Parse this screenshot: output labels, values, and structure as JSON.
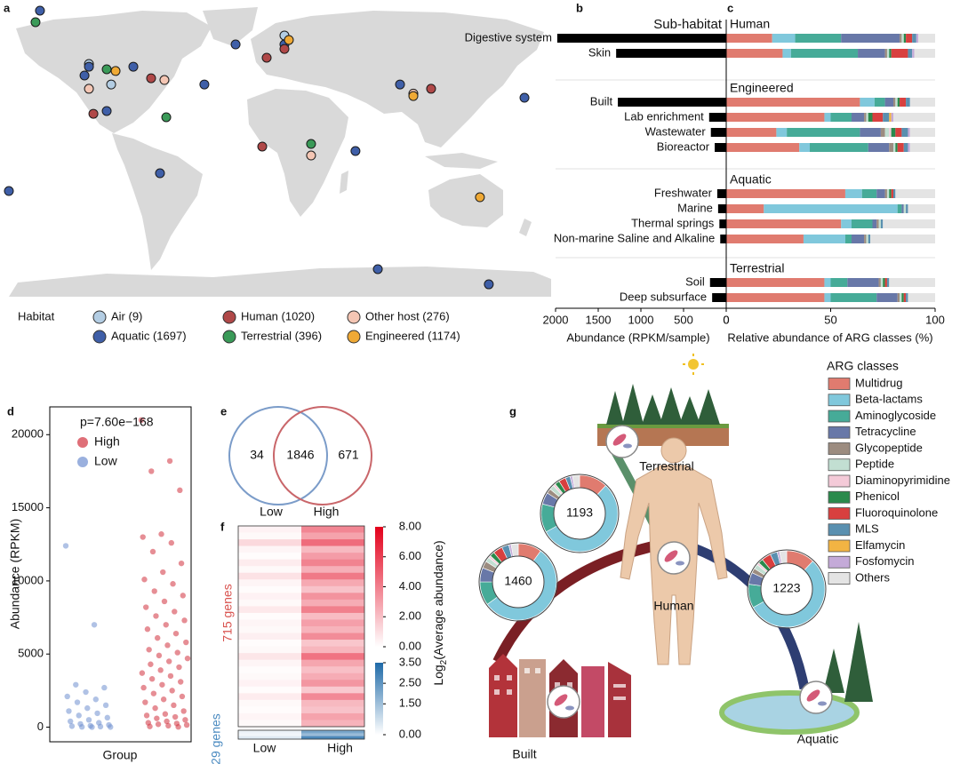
{
  "chart_data": [
    {
      "type": "map",
      "label": "a",
      "legend_title": "Habitat",
      "series": [
        {
          "name": "Air (9)",
          "color": "#b3cde3",
          "lon": [
            -121.9,
            -107.4,
            5.8
          ],
          "lat": [
            45.5,
            33.6,
            62.0
          ]
        },
        {
          "name": "Aquatic (1697)",
          "color": "#3f5fa8",
          "lon": [
            -153.9,
            -121.9,
            -124.8,
            -92.9,
            66.8,
            -26.1,
            5.8,
            139.3,
            -46.5,
            -174.2,
            -110.3,
            52.2,
            -75.5,
            162.6,
            81.3
          ],
          "lat": [
            76.4,
            43.9,
            38.8,
            43.9,
            -73.5,
            56.8,
            56.8,
            -82.3,
            33.6,
            -28.2,
            18.2,
            -5.0,
            -17.9,
            25.9,
            33.6
          ]
        },
        {
          "name": "Human (1020)",
          "color": "#b04848",
          "lon": [
            -81.3,
            -5.8,
            101.6,
            -8.7,
            -119.0,
            5.8
          ],
          "lat": [
            37.2,
            49.1,
            31.1,
            -2.4,
            16.6,
            54.2
          ]
        },
        {
          "name": "Terrestrial (396)",
          "color": "#3a9a58",
          "lon": [
            -156.8,
            -71.4,
            -110.3,
            23.2
          ],
          "lat": [
            69.7,
            14.6,
            42.4,
            -0.9
          ]
        },
        {
          "name": "Other host (276)",
          "color": "#f4c6b4",
          "lon": [
            90.0,
            23.2,
            -121.9,
            -72.6
          ],
          "lat": [
            28.3,
            -7.6,
            31.1,
            36.2
          ]
        },
        {
          "name": "Engineered (1174)",
          "color": "#efa935",
          "lon": [
            90.0,
            8.7,
            133.5,
            -104.5
          ],
          "lat": [
            26.9,
            59.4,
            -31.8,
            41.4
          ]
        }
      ]
    },
    {
      "type": "bar",
      "orientation": "horizontal",
      "label": "b",
      "title": "Sub-habitat",
      "color": "#000000",
      "xlabel": "Abundance (RPKM/sample)",
      "xlim": [
        2000,
        0
      ],
      "xticks": [
        2000,
        1500,
        1000,
        500,
        0
      ],
      "groups": [
        {
          "categories": [
            "Digestive system",
            "Skin"
          ],
          "values": [
            1980,
            1290
          ]
        },
        {
          "categories": [
            "Built",
            "Lab enrichment",
            "Wastewater",
            "Bioreactor"
          ],
          "values": [
            1270,
            200,
            180,
            135
          ]
        },
        {
          "categories": [
            "Freshwater",
            "Marine",
            "Thermal springs",
            "Non-marine Saline and Alkaline"
          ],
          "values": [
            105,
            95,
            80,
            70
          ]
        },
        {
          "categories": [
            "Soil",
            "Deep subsurface"
          ],
          "values": [
            190,
            165
          ]
        }
      ]
    },
    {
      "type": "stacked_bar",
      "label": "c",
      "xlabel": "Relative abundance of ARG classes (%)",
      "xlim": [
        0,
        100
      ],
      "xticks": [
        0,
        50,
        100
      ],
      "legend_title": "ARG classes",
      "series": [
        {
          "name": "Multidrug",
          "color": "#e07b6f"
        },
        {
          "name": "Beta-lactams",
          "color": "#80c8dc"
        },
        {
          "name": "Aminoglycoside",
          "color": "#46ab98"
        },
        {
          "name": "Tetracycline",
          "color": "#6878a8"
        },
        {
          "name": "Glycopeptide",
          "color": "#9c8c80"
        },
        {
          "name": "Peptide",
          "color": "#c2dfd2"
        },
        {
          "name": "Diaminopyrimidine",
          "color": "#f4cad8"
        },
        {
          "name": "Phenicol",
          "color": "#2a8a4c"
        },
        {
          "name": "Fluoroquinolone",
          "color": "#d8403f"
        },
        {
          "name": "MLS",
          "color": "#5a90b0"
        },
        {
          "name": "Elfamycin",
          "color": "#f2b443"
        },
        {
          "name": "Fosfomycin",
          "color": "#c4aad8"
        },
        {
          "name": "Others",
          "color": "#e4e4e4"
        }
      ],
      "groups": [
        {
          "name": "Human",
          "rows": [
            [
              22,
              11,
              22,
              28,
              1,
              1,
              0,
              1,
              3,
              2,
              0,
              1,
              8
            ],
            [
              27,
              4,
              32,
              13,
              1,
              1,
              0,
              1,
              8,
              2,
              0,
              1,
              10
            ]
          ]
        },
        {
          "name": "Engineered",
          "rows": [
            [
              64,
              7,
              5,
              4,
              1,
              1,
              0,
              1,
              3,
              2,
              0,
              0,
              12
            ],
            [
              47,
              3,
              10,
              6,
              1,
              1,
              0,
              2,
              5,
              3,
              1,
              1,
              20
            ],
            [
              24,
              5,
              35,
              10,
              2,
              2,
              1,
              2,
              3,
              3,
              0,
              1,
              12
            ],
            [
              35,
              5,
              28,
              10,
              2,
              1,
              0,
              1,
              3,
              2,
              0,
              1,
              12
            ]
          ]
        },
        {
          "name": "Aquatic",
          "rows": [
            [
              57,
              8,
              7,
              4,
              1,
              1,
              0,
              1,
              1,
              1,
              0,
              0,
              19
            ],
            [
              18,
              64,
              2,
              1,
              0,
              1,
              0,
              0,
              0,
              1,
              0,
              0,
              13
            ],
            [
              55,
              5,
              10,
              2,
              1,
              1,
              0,
              0,
              0,
              1,
              0,
              0,
              25
            ],
            [
              37,
              20,
              3,
              6,
              1,
              1,
              0,
              0,
              0,
              1,
              0,
              0,
              31
            ]
          ]
        },
        {
          "name": "Terrestrial",
          "rows": [
            [
              47,
              3,
              8,
              15,
              1,
              1,
              0,
              1,
              1,
              1,
              0,
              0,
              22
            ],
            [
              47,
              3,
              22,
              10,
              1,
              1,
              0,
              1,
              1,
              1,
              0,
              0,
              13
            ]
          ]
        }
      ]
    },
    {
      "type": "strip",
      "label": "d",
      "annotation": "p=7.60e−168",
      "ylabel": "Abundance (RPKM)",
      "xlabel": "Group",
      "ylim": [
        -1000,
        21900
      ],
      "yticks": [
        0,
        5000,
        10000,
        15000,
        20000
      ],
      "series": [
        {
          "name": "High",
          "color": "#d2323e",
          "values": [
            21000,
            18200,
            17500,
            16200,
            13200,
            13000,
            12600,
            12000,
            11200,
            10600,
            10100,
            9800,
            9300,
            9000,
            8600,
            8200,
            7900,
            7600,
            7300,
            7000,
            6700,
            6400,
            6100,
            5800,
            5600,
            5300,
            5100,
            4900,
            4700,
            4500,
            4300,
            4100,
            3900,
            3700,
            3500,
            3300,
            3100,
            2900,
            2700,
            2500,
            2300,
            2100,
            1900,
            1700,
            1500,
            1300,
            1100,
            900,
            800,
            700,
            600,
            500,
            400,
            300,
            250,
            200,
            150,
            100,
            50,
            20
          ]
        },
        {
          "name": "Low",
          "color": "#6f8fd0",
          "values": [
            12400,
            7000,
            2900,
            2700,
            2400,
            2100,
            1900,
            1700,
            1500,
            1300,
            1100,
            950,
            800,
            650,
            500,
            400,
            300,
            220,
            150,
            100,
            70,
            40,
            20,
            10,
            5
          ]
        }
      ]
    },
    {
      "type": "venn",
      "label": "e",
      "sets": [
        {
          "name": "Low",
          "color": "#7b9cc9"
        },
        {
          "name": "High",
          "color": "#c9666a"
        }
      ],
      "values": [
        34,
        1846,
        671
      ]
    },
    {
      "type": "heatmap",
      "label": "f",
      "columns": [
        "Low",
        "High"
      ],
      "groups": [
        {
          "name": "715 genes",
          "color": "#d9534f",
          "rows": [
            [
              0.4,
              3.8
            ],
            [
              0.2,
              2.9
            ],
            [
              1.2,
              4.6
            ],
            [
              0.3,
              2.2
            ],
            [
              0.1,
              3.1
            ],
            [
              0.6,
              3.9
            ],
            [
              0.2,
              2.5
            ],
            [
              0.9,
              4.2
            ],
            [
              0.3,
              2.7
            ],
            [
              0.1,
              1.9
            ],
            [
              0.4,
              3.4
            ],
            [
              0.2,
              2.6
            ],
            [
              0.7,
              4.0
            ],
            [
              0.1,
              2.1
            ],
            [
              0.3,
              3.0
            ],
            [
              0.2,
              2.4
            ],
            [
              0.5,
              3.6
            ],
            [
              0.1,
              1.8
            ],
            [
              0.2,
              2.3
            ],
            [
              0.8,
              4.4
            ],
            [
              0.3,
              2.8
            ],
            [
              0.1,
              2.0
            ],
            [
              0.2,
              2.6
            ],
            [
              0.4,
              3.3
            ],
            [
              0.1,
              1.7
            ],
            [
              0.6,
              3.7
            ],
            [
              0.2,
              2.2
            ],
            [
              0.1,
              1.9
            ],
            [
              0.3,
              2.9
            ],
            [
              0.2,
              2.4
            ]
          ]
        },
        {
          "name": "29 genes",
          "color": "#4a8ac0",
          "rows": [
            [
              0.3,
              2.1
            ],
            [
              0.2,
              1.6
            ],
            [
              0.5,
              2.8
            ]
          ]
        }
      ],
      "colorbars": [
        {
          "colors": [
            "#ffffff",
            "#e3001b"
          ],
          "lim": [
            0,
            8
          ],
          "ticks": [
            {
              "value": 8,
              "label": "8.00"
            },
            {
              "value": 6,
              "label": "6.00"
            },
            {
              "value": 4,
              "label": "4.00"
            },
            {
              "value": 2,
              "label": "2.00"
            },
            {
              "value": 0,
              "label": "0.00"
            }
          ]
        },
        {
          "colors": [
            "#ffffff",
            "#1f6aa8"
          ],
          "lim": [
            0,
            3.5
          ],
          "ticks": [
            {
              "value": 3.5,
              "label": "3.50"
            },
            {
              "value": 2.5,
              "label": "2.50"
            },
            {
              "value": 1.5,
              "label": "1.50"
            },
            {
              "value": 0,
              "label": "0.00"
            }
          ]
        }
      ],
      "colorbar_label": [
        "Log",
        "2",
        "(Average abundance)"
      ]
    },
    {
      "type": "donut",
      "label": "g",
      "nodes": [
        "Terrestrial",
        "Human",
        "Built",
        "Aquatic"
      ],
      "donuts": [
        {
          "total": 1193,
          "values": [
            12,
            55,
            12,
            5,
            2,
            2,
            1,
            2,
            3,
            2,
            0,
            1,
            3
          ]
        },
        {
          "total": 1460,
          "values": [
            10,
            55,
            10,
            6,
            3,
            2,
            1,
            2,
            4,
            3,
            0,
            1,
            3
          ]
        },
        {
          "total": 1223,
          "values": [
            12,
            55,
            10,
            5,
            2,
            2,
            1,
            2,
            4,
            3,
            0,
            1,
            3
          ]
        }
      ]
    }
  ]
}
